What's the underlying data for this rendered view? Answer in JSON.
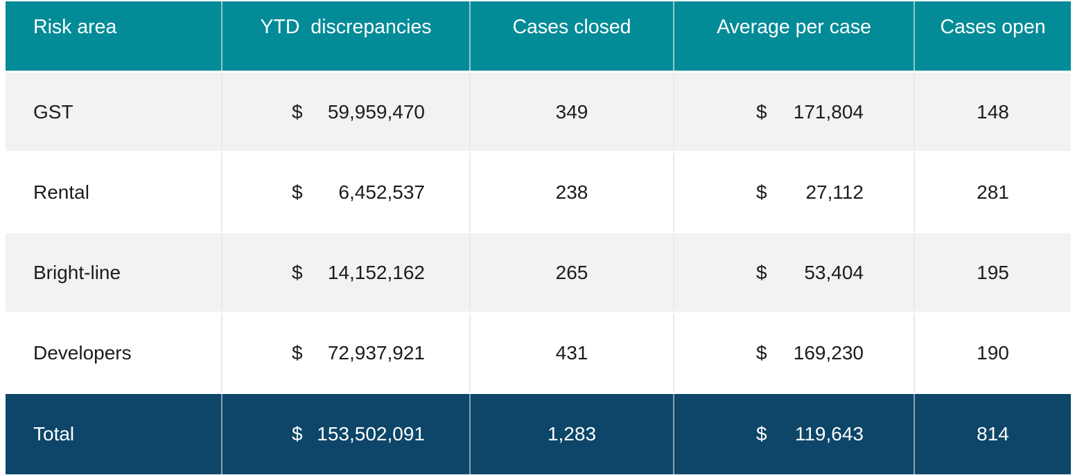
{
  "table": {
    "columns": [
      {
        "label": "Risk area"
      },
      {
        "label": "YTD  discrepancies"
      },
      {
        "label": "Cases closed"
      },
      {
        "label": "Average per case"
      },
      {
        "label": "Cases open"
      }
    ],
    "currency_symbol": "$",
    "rows": [
      {
        "risk_area": "GST",
        "currency": "$",
        "ytd_discrepancies": "59,959,470",
        "cases_closed": "349",
        "average_per_case": "171,804",
        "cases_open": "148"
      },
      {
        "risk_area": "Rental",
        "currency": "$",
        "ytd_discrepancies": "6,452,537",
        "cases_closed": "238",
        "average_per_case": "27,112",
        "cases_open": "281"
      },
      {
        "risk_area": "Bright-line",
        "currency": "$",
        "ytd_discrepancies": "14,152,162",
        "cases_closed": "265",
        "average_per_case": "53,404",
        "cases_open": "195"
      },
      {
        "risk_area": "Developers",
        "currency": "$",
        "ytd_discrepancies": "72,937,921",
        "cases_closed": "431",
        "average_per_case": "169,230",
        "cases_open": "190"
      }
    ],
    "total": {
      "risk_area": "Total",
      "currency": "$",
      "ytd_discrepancies": "153,502,091",
      "cases_closed": "1,283",
      "average_per_case": "119,643",
      "cases_open": "814"
    }
  },
  "colors": {
    "header_background": "#048b98",
    "total_background": "#0d4668",
    "row_alternate": "#f2f2f2",
    "row_plain": "#ffffff",
    "text_dark": "#1c1c1c",
    "text_light": "#ffffff"
  },
  "chart_data": {
    "type": "table",
    "columns": [
      "Risk area",
      "YTD discrepancies",
      "Cases closed",
      "Average per case",
      "Cases open"
    ],
    "rows": [
      [
        "GST",
        59959470,
        349,
        171804,
        148
      ],
      [
        "Rental",
        6452537,
        238,
        27112,
        281
      ],
      [
        "Bright-line",
        14152162,
        265,
        53404,
        195
      ],
      [
        "Developers",
        72937921,
        431,
        169230,
        190
      ],
      [
        "Total",
        153502091,
        1283,
        119643,
        814
      ]
    ],
    "currency_columns": [
      "YTD discrepancies",
      "Average per case"
    ],
    "currency_unit": "$",
    "layout": {
      "header_style": "teal-band",
      "total_row_style": "navy-band",
      "body_row_striping": [
        "#f2f2f2",
        "#ffffff"
      ]
    }
  }
}
